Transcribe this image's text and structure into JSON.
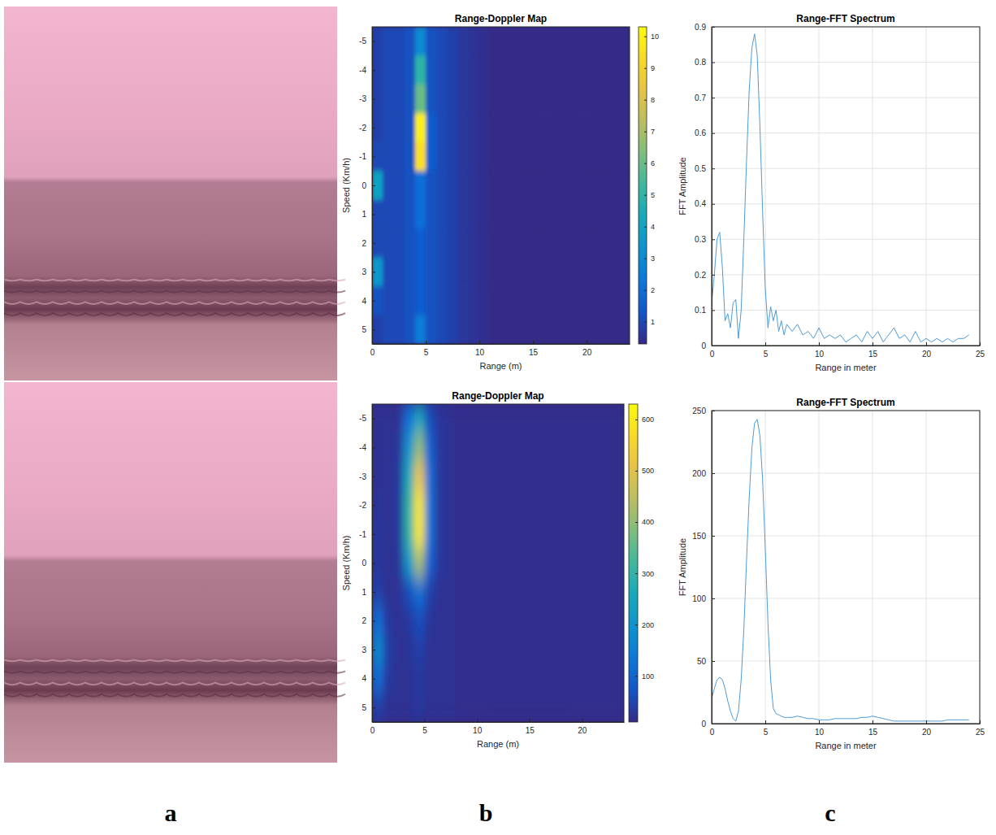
{
  "chart_data": [
    {
      "type": "heatmap",
      "title": "Range-Doppler Map",
      "x_label": "Range (m)",
      "y_label": "Speed (Km/h)",
      "x": [
        0.5,
        1.5,
        2.5,
        3.5,
        4.5,
        5.5,
        6.5,
        7.5,
        8.5,
        9.5,
        10.5,
        11.5,
        12.5,
        13.5,
        14.5,
        15.5,
        16.5,
        17.5,
        18.5,
        19.5,
        20.5,
        21.5,
        22.5,
        23.5
      ],
      "y": [
        -5,
        -4,
        -3,
        -2,
        -1,
        0,
        1,
        2,
        3,
        4,
        5
      ],
      "cells": [
        [
          0.8,
          1,
          1,
          1.2,
          3,
          1.2,
          1,
          0.8,
          0.6,
          0.5,
          0.4,
          0.3,
          0.3,
          0.3,
          0.3,
          0.3,
          0.3,
          0.3,
          0.3,
          0.3,
          0.3,
          0.3,
          0.3,
          0.3
        ],
        [
          0.8,
          1,
          1,
          1.2,
          5,
          1.2,
          1,
          0.8,
          0.6,
          0.5,
          0.4,
          0.3,
          0.3,
          0.3,
          0.3,
          0.3,
          0.3,
          0.3,
          0.3,
          0.3,
          0.3,
          0.3,
          0.3,
          0.3
        ],
        [
          0.8,
          1,
          1,
          1.2,
          6,
          1.2,
          1,
          0.8,
          0.6,
          0.5,
          0.4,
          0.3,
          0.3,
          0.3,
          0.3,
          0.3,
          0.3,
          0.3,
          0.3,
          0.3,
          0.3,
          0.3,
          0.3,
          0.3
        ],
        [
          0.8,
          1,
          1,
          1.2,
          10,
          1.5,
          1,
          0.8,
          0.6,
          0.5,
          0.4,
          0.3,
          0.3,
          0.3,
          0.3,
          0.3,
          0.3,
          0.3,
          0.3,
          0.3,
          0.3,
          0.3,
          0.3,
          0.3
        ],
        [
          1,
          1,
          1,
          1.2,
          9.5,
          1.5,
          1,
          0.8,
          0.6,
          0.5,
          0.4,
          0.3,
          0.3,
          0.3,
          0.3,
          0.3,
          0.3,
          0.3,
          0.3,
          0.3,
          0.3,
          0.3,
          0.3,
          0.3
        ],
        [
          4,
          1,
          1,
          1.2,
          2,
          1.2,
          1,
          0.8,
          0.6,
          0.5,
          0.4,
          0.3,
          0.3,
          0.3,
          0.3,
          0.3,
          0.3,
          0.3,
          0.3,
          0.3,
          0.3,
          0.3,
          0.3,
          0.3
        ],
        [
          1,
          1,
          1,
          1.2,
          2,
          1.2,
          1,
          0.8,
          0.6,
          0.5,
          0.4,
          0.3,
          0.3,
          0.3,
          0.3,
          0.3,
          0.3,
          0.3,
          0.3,
          0.3,
          0.3,
          0.3,
          0.3,
          0.3
        ],
        [
          1,
          1,
          1,
          1.2,
          1.5,
          1.2,
          1,
          0.8,
          0.6,
          0.5,
          0.4,
          0.3,
          0.3,
          0.3,
          0.3,
          0.3,
          0.3,
          0.3,
          0.3,
          0.3,
          0.3,
          0.3,
          0.3,
          0.3
        ],
        [
          3.5,
          1,
          1,
          1.2,
          1.5,
          1.2,
          1,
          0.8,
          0.6,
          0.5,
          0.4,
          0.3,
          0.3,
          0.3,
          0.3,
          0.3,
          0.3,
          0.3,
          0.3,
          0.3,
          0.3,
          0.3,
          0.3,
          0.3
        ],
        [
          1.2,
          1,
          1,
          1.2,
          1.5,
          1.2,
          1,
          0.8,
          0.6,
          0.5,
          0.4,
          0.3,
          0.3,
          0.3,
          0.3,
          0.3,
          0.3,
          0.3,
          0.3,
          0.3,
          0.3,
          0.3,
          0.3,
          0.3
        ],
        [
          0.8,
          1,
          1,
          1.2,
          2.5,
          1.2,
          1,
          0.8,
          0.6,
          0.5,
          0.4,
          0.3,
          0.3,
          0.3,
          0.3,
          0.3,
          0.3,
          0.3,
          0.3,
          0.3,
          0.3,
          0.3,
          0.3,
          0.3
        ]
      ],
      "xlim": [
        0,
        24
      ],
      "ylim": [
        -5.5,
        5.5
      ],
      "xticks": [
        0,
        5,
        10,
        15,
        20
      ],
      "yticks": [
        -5,
        -4,
        -3,
        -2,
        -1,
        0,
        1,
        2,
        3,
        4,
        5
      ],
      "colorbar_range": [
        0.3,
        10.3
      ],
      "colorbar_ticks": [
        1,
        2,
        3,
        4,
        5,
        6,
        7,
        8,
        9,
        10
      ]
    },
    {
      "type": "line",
      "title": "Range-FFT Spectrum",
      "x_label": "Range in meter",
      "y_label": "FFT Amplitude",
      "x": [
        0,
        0.25,
        0.5,
        0.75,
        1,
        1.25,
        1.5,
        1.75,
        2,
        2.25,
        2.5,
        2.75,
        3,
        3.25,
        3.5,
        3.75,
        4,
        4.25,
        4.5,
        4.75,
        5,
        5.25,
        5.5,
        5.75,
        6,
        6.25,
        6.5,
        6.75,
        7,
        7.5,
        8,
        8.5,
        9,
        9.5,
        10,
        10.5,
        11,
        11.5,
        12,
        12.5,
        13,
        13.5,
        14,
        14.5,
        15,
        15.5,
        16,
        16.5,
        17,
        17.5,
        18,
        18.5,
        19,
        19.5,
        20,
        20.5,
        21,
        21.5,
        22,
        22.5,
        23,
        23.5,
        24
      ],
      "series": [
        {
          "color": "#4f9bd6",
          "values": [
            0.12,
            0.2,
            0.3,
            0.32,
            0.22,
            0.07,
            0.09,
            0.05,
            0.12,
            0.13,
            0.02,
            0.1,
            0.3,
            0.52,
            0.72,
            0.84,
            0.88,
            0.82,
            0.62,
            0.38,
            0.16,
            0.05,
            0.11,
            0.07,
            0.1,
            0.04,
            0.07,
            0.03,
            0.06,
            0.04,
            0.06,
            0.03,
            0.04,
            0.02,
            0.05,
            0.02,
            0.03,
            0.02,
            0.03,
            0.01,
            0.02,
            0.03,
            0.01,
            0.04,
            0.02,
            0.04,
            0.01,
            0.03,
            0.05,
            0.02,
            0.03,
            0.01,
            0.04,
            0.01,
            0.02,
            0.01,
            0.02,
            0.01,
            0.02,
            0.01,
            0.02,
            0.02,
            0.03
          ]
        }
      ],
      "xlim": [
        0,
        25
      ],
      "ylim": [
        0,
        0.9
      ],
      "xticks": [
        0,
        5,
        10,
        15,
        20,
        25
      ],
      "yticks": [
        0,
        0.1,
        0.2,
        0.3,
        0.4,
        0.5,
        0.6,
        0.7,
        0.8,
        0.9
      ],
      "grid": true
    },
    {
      "type": "heatmap",
      "title": "Range-Doppler Map",
      "x_label": "Range (m)",
      "y_label": "Speed (Km/h)",
      "x": [
        0.5,
        1.5,
        2.5,
        3.5,
        4.5,
        5.5,
        6.5,
        7.5,
        8.5,
        9.5,
        10.5,
        11.5,
        12.5,
        13.5,
        14.5,
        15.5,
        16.5,
        17.5,
        18.5,
        19.5,
        20.5,
        21.5,
        22.5,
        23.5
      ],
      "y": [
        -5,
        -4,
        -3,
        -2,
        -1,
        0,
        1,
        2,
        3,
        4,
        5
      ],
      "cells": [
        [
          20,
          20,
          20,
          120,
          250,
          60,
          25,
          20,
          15,
          15,
          15,
          15,
          15,
          15,
          15,
          15,
          15,
          15,
          15,
          15,
          15,
          15,
          15,
          15
        ],
        [
          20,
          20,
          25,
          200,
          400,
          90,
          25,
          20,
          15,
          15,
          15,
          15,
          15,
          15,
          15,
          15,
          15,
          15,
          15,
          15,
          15,
          15,
          15,
          15
        ],
        [
          20,
          20,
          30,
          260,
          520,
          110,
          25,
          20,
          15,
          15,
          15,
          15,
          15,
          15,
          15,
          15,
          15,
          15,
          15,
          15,
          15,
          15,
          15,
          15
        ],
        [
          25,
          20,
          30,
          300,
          600,
          120,
          25,
          20,
          15,
          15,
          15,
          15,
          15,
          15,
          15,
          15,
          15,
          15,
          15,
          15,
          15,
          15,
          15,
          15
        ],
        [
          30,
          20,
          30,
          300,
          600,
          120,
          25,
          20,
          15,
          15,
          15,
          15,
          15,
          15,
          15,
          15,
          15,
          15,
          15,
          15,
          15,
          15,
          15,
          15
        ],
        [
          30,
          20,
          25,
          210,
          420,
          90,
          25,
          20,
          15,
          15,
          15,
          15,
          15,
          15,
          15,
          15,
          15,
          15,
          15,
          15,
          15,
          15,
          15,
          15
        ],
        [
          40,
          20,
          20,
          60,
          120,
          40,
          20,
          20,
          15,
          15,
          15,
          15,
          15,
          15,
          15,
          15,
          15,
          15,
          15,
          15,
          15,
          15,
          15,
          15
        ],
        [
          120,
          30,
          20,
          30,
          60,
          25,
          20,
          20,
          15,
          15,
          15,
          15,
          15,
          15,
          15,
          15,
          15,
          15,
          15,
          15,
          15,
          15,
          15,
          15
        ],
        [
          180,
          40,
          20,
          25,
          40,
          20,
          20,
          20,
          15,
          15,
          15,
          15,
          15,
          15,
          15,
          15,
          15,
          15,
          15,
          15,
          15,
          15,
          15,
          15
        ],
        [
          120,
          30,
          20,
          20,
          30,
          20,
          20,
          20,
          15,
          15,
          15,
          15,
          15,
          15,
          15,
          15,
          15,
          15,
          15,
          15,
          15,
          15,
          15,
          15
        ],
        [
          40,
          20,
          20,
          20,
          30,
          20,
          20,
          20,
          15,
          15,
          15,
          15,
          15,
          15,
          15,
          15,
          15,
          15,
          15,
          15,
          15,
          15,
          15,
          15
        ]
      ],
      "xlim": [
        0,
        24
      ],
      "ylim": [
        -5.5,
        5.5
      ],
      "xticks": [
        0,
        5,
        10,
        15,
        20
      ],
      "yticks": [
        -5,
        -4,
        -3,
        -2,
        -1,
        0,
        1,
        2,
        3,
        4,
        5
      ],
      "colorbar_range": [
        10,
        630
      ],
      "colorbar_ticks": [
        100,
        200,
        300,
        400,
        500,
        600
      ]
    },
    {
      "type": "line",
      "title": "Range-FFT Spectrum",
      "x_label": "Range in meter",
      "y_label": "FFT Amplitude",
      "x": [
        0,
        0.25,
        0.5,
        0.75,
        1,
        1.25,
        1.5,
        1.75,
        2,
        2.25,
        2.5,
        2.75,
        3,
        3.25,
        3.5,
        3.75,
        4,
        4.25,
        4.5,
        4.75,
        5,
        5.25,
        5.5,
        5.75,
        6,
        6.25,
        6.5,
        6.75,
        7,
        7.5,
        8,
        8.5,
        9,
        9.5,
        10,
        10.5,
        11,
        11.5,
        12,
        12.5,
        13,
        13.5,
        14,
        14.5,
        15,
        15.5,
        16,
        16.5,
        17,
        17.5,
        18,
        18.5,
        19,
        19.5,
        20,
        20.5,
        21,
        21.5,
        22,
        22.5,
        23,
        23.5,
        24
      ],
      "series": [
        {
          "color": "#4f9bd6",
          "values": [
            20,
            28,
            35,
            37,
            35,
            28,
            18,
            10,
            4,
            2,
            10,
            35,
            75,
            130,
            180,
            220,
            240,
            243,
            230,
            195,
            140,
            80,
            35,
            12,
            8,
            7,
            6,
            5,
            5,
            5,
            6,
            5,
            4,
            4,
            3,
            3,
            3,
            4,
            4,
            4,
            4,
            4,
            5,
            5,
            6,
            5,
            4,
            3,
            2,
            2,
            2,
            2,
            2,
            2,
            2,
            2,
            2,
            2,
            3,
            3,
            3,
            3,
            3
          ]
        }
      ],
      "xlim": [
        0,
        25
      ],
      "ylim": [
        0,
        250
      ],
      "xticks": [
        0,
        5,
        10,
        15,
        20,
        25
      ],
      "yticks": [
        0,
        50,
        100,
        150,
        200,
        250
      ],
      "grid": true
    }
  ],
  "panel_labels": [
    "a",
    "b",
    "c"
  ]
}
